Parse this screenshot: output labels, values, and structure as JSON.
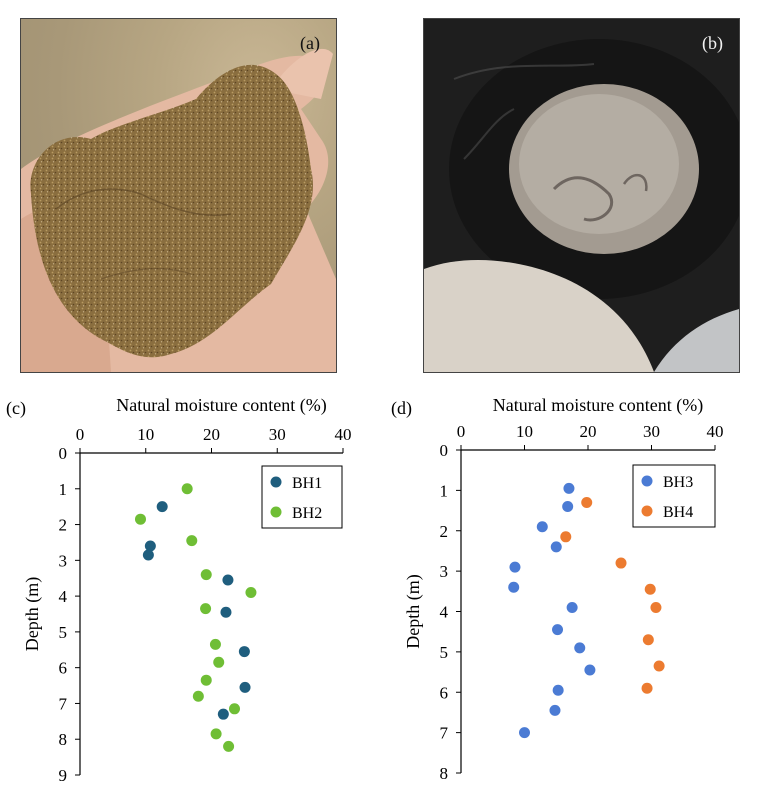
{
  "panels": {
    "a": {
      "label": "(a)"
    },
    "b": {
      "label": "(b)"
    }
  },
  "colors": {
    "BH1": "#1f5e7e",
    "BH2": "#6fbe35",
    "BH3": "#4b7bd4",
    "BH4": "#ec7b30"
  },
  "chart_data": [
    {
      "panel": "(c)",
      "type": "scatter",
      "xlabel": "Natural moisture content (%)",
      "ylabel": "Depth (m)",
      "xlim": [
        0,
        40
      ],
      "ylim": [
        0,
        9
      ],
      "x_ticks": [
        0,
        10,
        20,
        30,
        40
      ],
      "y_ticks": [
        0,
        1,
        2,
        3,
        4,
        5,
        6,
        7,
        8,
        9
      ],
      "x_axis_position": "top",
      "y_inverted": true,
      "legend_position": "top-right",
      "series": [
        {
          "name": "BH1",
          "color": "#1f5e7e",
          "points": [
            [
              12.5,
              1.5
            ],
            [
              10.7,
              2.6
            ],
            [
              10.4,
              2.85
            ],
            [
              22.5,
              3.55
            ],
            [
              22.2,
              4.45
            ],
            [
              25.0,
              5.55
            ],
            [
              25.1,
              6.55
            ],
            [
              21.8,
              7.3
            ]
          ]
        },
        {
          "name": "BH2",
          "color": "#6fbe35",
          "points": [
            [
              16.3,
              1.0
            ],
            [
              9.2,
              1.85
            ],
            [
              17.0,
              2.45
            ],
            [
              19.2,
              3.4
            ],
            [
              26.0,
              3.9
            ],
            [
              19.1,
              4.35
            ],
            [
              20.6,
              5.35
            ],
            [
              21.1,
              5.85
            ],
            [
              19.2,
              6.35
            ],
            [
              18.0,
              6.8
            ],
            [
              23.5,
              7.15
            ],
            [
              20.7,
              7.85
            ],
            [
              22.6,
              8.2
            ]
          ]
        }
      ]
    },
    {
      "panel": "(d)",
      "type": "scatter",
      "xlabel": "Natural moisture content (%)",
      "ylabel": "Depth (m)",
      "xlim": [
        0,
        40
      ],
      "ylim": [
        0,
        8
      ],
      "x_ticks": [
        0,
        10,
        20,
        30,
        40
      ],
      "y_ticks": [
        0,
        1,
        2,
        3,
        4,
        5,
        6,
        7,
        8
      ],
      "x_axis_position": "top",
      "y_inverted": true,
      "legend_position": "top-right",
      "series": [
        {
          "name": "BH3",
          "color": "#4b7bd4",
          "points": [
            [
              17.0,
              0.95
            ],
            [
              16.8,
              1.4
            ],
            [
              12.8,
              1.9
            ],
            [
              15.0,
              2.4
            ],
            [
              8.5,
              2.9
            ],
            [
              8.3,
              3.4
            ],
            [
              17.5,
              3.9
            ],
            [
              15.2,
              4.45
            ],
            [
              18.7,
              4.9
            ],
            [
              20.3,
              5.45
            ],
            [
              15.3,
              5.95
            ],
            [
              14.8,
              6.45
            ],
            [
              10.0,
              7.0
            ]
          ]
        },
        {
          "name": "BH4",
          "color": "#ec7b30",
          "points": [
            [
              19.8,
              1.3
            ],
            [
              16.5,
              2.15
            ],
            [
              25.2,
              2.8
            ],
            [
              29.8,
              3.45
            ],
            [
              30.7,
              3.9
            ],
            [
              29.5,
              4.7
            ],
            [
              31.2,
              5.35
            ],
            [
              29.3,
              5.9
            ]
          ]
        }
      ]
    }
  ]
}
